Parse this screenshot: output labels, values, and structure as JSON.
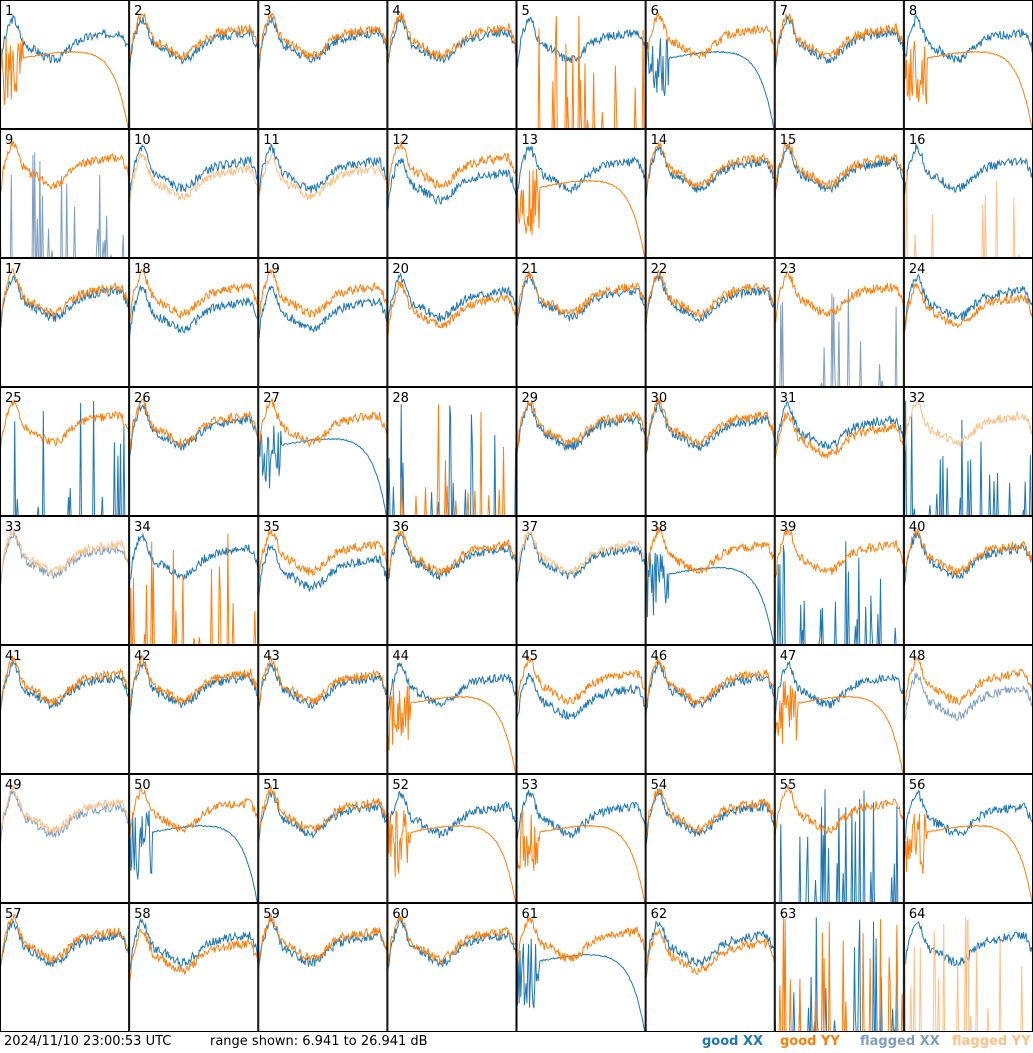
{
  "timestamp": "2024/11/10 23:00:53 UTC",
  "range_label": "range shown: 6.941 to 26.941 dB",
  "colors": {
    "good_xx": "#1f77b4",
    "good_yy": "#ff7f0e",
    "flagged_xx": "#7f9fbf",
    "flagged_yy": "#ffbf87",
    "frame": "#000000"
  },
  "legend": [
    {
      "label": "good XX",
      "color": "#1f77b4"
    },
    {
      "label": "good YY",
      "color": "#ff7f0e"
    },
    {
      "label": "flagged XX",
      "color": "#7f9fbf"
    },
    {
      "label": "flagged YY",
      "color": "#ffbf87"
    }
  ],
  "chart_data": {
    "type": "line",
    "layout": "8x8 grid of small multiples",
    "ylim": [
      6.941,
      26.941
    ],
    "yunit": "dB",
    "panels": [
      {
        "id": "1",
        "xx": "good",
        "yy": "good",
        "shape_xx": "normal",
        "shape_yy": "decay"
      },
      {
        "id": "2",
        "xx": "good",
        "yy": "good",
        "shape_xx": "normal",
        "shape_yy": "normal"
      },
      {
        "id": "3",
        "xx": "good",
        "yy": "good",
        "shape_xx": "normal",
        "shape_yy": "normal"
      },
      {
        "id": "4",
        "xx": "good",
        "yy": "good",
        "shape_xx": "normal",
        "shape_yy": "normal"
      },
      {
        "id": "5",
        "xx": "good",
        "yy": "good",
        "shape_xx": "normal",
        "shape_yy": "spikes"
      },
      {
        "id": "6",
        "xx": "good",
        "yy": "good",
        "shape_xx": "decay",
        "shape_yy": "normal"
      },
      {
        "id": "7",
        "xx": "good",
        "yy": "good",
        "shape_xx": "normal",
        "shape_yy": "normal"
      },
      {
        "id": "8",
        "xx": "good",
        "yy": "good",
        "shape_xx": "normal",
        "shape_yy": "decay"
      },
      {
        "id": "9",
        "xx": "flagged",
        "yy": "good",
        "shape_xx": "spikes",
        "shape_yy": "normal"
      },
      {
        "id": "10",
        "xx": "good",
        "yy": "flagged",
        "shape_xx": "normal",
        "shape_yy": "low"
      },
      {
        "id": "11",
        "xx": "good",
        "yy": "flagged",
        "shape_xx": "normal",
        "shape_yy": "low"
      },
      {
        "id": "12",
        "xx": "good",
        "yy": "good",
        "shape_xx": "low",
        "shape_yy": "normal"
      },
      {
        "id": "13",
        "xx": "good",
        "yy": "good",
        "shape_xx": "normal",
        "shape_yy": "decay"
      },
      {
        "id": "14",
        "xx": "good",
        "yy": "good",
        "shape_xx": "normal",
        "shape_yy": "normal"
      },
      {
        "id": "15",
        "xx": "good",
        "yy": "good",
        "shape_xx": "normal",
        "shape_yy": "normal"
      },
      {
        "id": "16",
        "xx": "good",
        "yy": "flagged",
        "shape_xx": "normal",
        "shape_yy": "spikes"
      },
      {
        "id": "17",
        "xx": "good",
        "yy": "good",
        "shape_xx": "normal",
        "shape_yy": "normal"
      },
      {
        "id": "18",
        "xx": "good",
        "yy": "good",
        "shape_xx": "low",
        "shape_yy": "normal"
      },
      {
        "id": "19",
        "xx": "good",
        "yy": "good",
        "shape_xx": "low",
        "shape_yy": "normal"
      },
      {
        "id": "20",
        "xx": "good",
        "yy": "good",
        "shape_xx": "normal",
        "shape_yy": "low"
      },
      {
        "id": "21",
        "xx": "good",
        "yy": "good",
        "shape_xx": "normal",
        "shape_yy": "normal"
      },
      {
        "id": "22",
        "xx": "good",
        "yy": "good",
        "shape_xx": "normal",
        "shape_yy": "normal"
      },
      {
        "id": "23",
        "xx": "flagged",
        "yy": "good",
        "shape_xx": "spikes",
        "shape_yy": "normal"
      },
      {
        "id": "24",
        "xx": "good",
        "yy": "good",
        "shape_xx": "normal",
        "shape_yy": "low"
      },
      {
        "id": "25",
        "xx": "good",
        "yy": "good",
        "shape_xx": "spikes",
        "shape_yy": "normal"
      },
      {
        "id": "26",
        "xx": "good",
        "yy": "good",
        "shape_xx": "normal",
        "shape_yy": "normal"
      },
      {
        "id": "27",
        "xx": "good",
        "yy": "good",
        "shape_xx": "decay",
        "shape_yy": "normal"
      },
      {
        "id": "28",
        "xx": "good",
        "yy": "good",
        "shape_xx": "spikes",
        "shape_yy": "spikes"
      },
      {
        "id": "29",
        "xx": "good",
        "yy": "good",
        "shape_xx": "normal",
        "shape_yy": "normal"
      },
      {
        "id": "30",
        "xx": "good",
        "yy": "good",
        "shape_xx": "normal",
        "shape_yy": "normal"
      },
      {
        "id": "31",
        "xx": "good",
        "yy": "good",
        "shape_xx": "normal",
        "shape_yy": "low"
      },
      {
        "id": "32",
        "xx": "good",
        "yy": "flagged",
        "shape_xx": "spikes",
        "shape_yy": "normal"
      },
      {
        "id": "33",
        "xx": "flagged",
        "yy": "flagged",
        "shape_xx": "normal",
        "shape_yy": "normal"
      },
      {
        "id": "34",
        "xx": "good",
        "yy": "good",
        "shape_xx": "normal",
        "shape_yy": "spikes"
      },
      {
        "id": "35",
        "xx": "good",
        "yy": "good",
        "shape_xx": "low",
        "shape_yy": "normal"
      },
      {
        "id": "36",
        "xx": "good",
        "yy": "good",
        "shape_xx": "normal",
        "shape_yy": "normal"
      },
      {
        "id": "37",
        "xx": "good",
        "yy": "flagged",
        "shape_xx": "normal",
        "shape_yy": "normal"
      },
      {
        "id": "38",
        "xx": "good",
        "yy": "good",
        "shape_xx": "decay",
        "shape_yy": "normal"
      },
      {
        "id": "39",
        "xx": "good",
        "yy": "good",
        "shape_xx": "spikes",
        "shape_yy": "normal"
      },
      {
        "id": "40",
        "xx": "good",
        "yy": "good",
        "shape_xx": "normal",
        "shape_yy": "normal"
      },
      {
        "id": "41",
        "xx": "good",
        "yy": "good",
        "shape_xx": "normal",
        "shape_yy": "normal"
      },
      {
        "id": "42",
        "xx": "good",
        "yy": "good",
        "shape_xx": "normal",
        "shape_yy": "normal"
      },
      {
        "id": "43",
        "xx": "good",
        "yy": "good",
        "shape_xx": "normal",
        "shape_yy": "normal"
      },
      {
        "id": "44",
        "xx": "good",
        "yy": "good",
        "shape_xx": "normal",
        "shape_yy": "decay"
      },
      {
        "id": "45",
        "xx": "good",
        "yy": "good",
        "shape_xx": "low",
        "shape_yy": "normal"
      },
      {
        "id": "46",
        "xx": "good",
        "yy": "good",
        "shape_xx": "normal",
        "shape_yy": "normal"
      },
      {
        "id": "47",
        "xx": "good",
        "yy": "good",
        "shape_xx": "normal",
        "shape_yy": "decay"
      },
      {
        "id": "48",
        "xx": "flagged",
        "yy": "good",
        "shape_xx": "low",
        "shape_yy": "normal"
      },
      {
        "id": "49",
        "xx": "flagged",
        "yy": "flagged",
        "shape_xx": "normal",
        "shape_yy": "normal"
      },
      {
        "id": "50",
        "xx": "good",
        "yy": "good",
        "shape_xx": "decay",
        "shape_yy": "normal"
      },
      {
        "id": "51",
        "xx": "good",
        "yy": "good",
        "shape_xx": "normal",
        "shape_yy": "normal"
      },
      {
        "id": "52",
        "xx": "good",
        "yy": "good",
        "shape_xx": "normal",
        "shape_yy": "decay"
      },
      {
        "id": "53",
        "xx": "good",
        "yy": "good",
        "shape_xx": "normal",
        "shape_yy": "decay"
      },
      {
        "id": "54",
        "xx": "good",
        "yy": "good",
        "shape_xx": "normal",
        "shape_yy": "normal"
      },
      {
        "id": "55",
        "xx": "good",
        "yy": "good",
        "shape_xx": "spikes",
        "shape_yy": "normal"
      },
      {
        "id": "56",
        "xx": "good",
        "yy": "good",
        "shape_xx": "normal",
        "shape_yy": "decay"
      },
      {
        "id": "57",
        "xx": "good",
        "yy": "good",
        "shape_xx": "normal",
        "shape_yy": "normal"
      },
      {
        "id": "58",
        "xx": "good",
        "yy": "good",
        "shape_xx": "normal",
        "shape_yy": "low"
      },
      {
        "id": "59",
        "xx": "good",
        "yy": "good",
        "shape_xx": "normal",
        "shape_yy": "normal"
      },
      {
        "id": "60",
        "xx": "good",
        "yy": "good",
        "shape_xx": "normal",
        "shape_yy": "normal"
      },
      {
        "id": "61",
        "xx": "good",
        "yy": "good",
        "shape_xx": "decay",
        "shape_yy": "normal"
      },
      {
        "id": "62",
        "xx": "good",
        "yy": "good",
        "shape_xx": "normal",
        "shape_yy": "low"
      },
      {
        "id": "63",
        "xx": "good",
        "yy": "good",
        "shape_xx": "spikes",
        "shape_yy": "spikes"
      },
      {
        "id": "64",
        "xx": "good",
        "yy": "flagged",
        "shape_xx": "normal",
        "shape_yy": "spikes"
      }
    ]
  }
}
